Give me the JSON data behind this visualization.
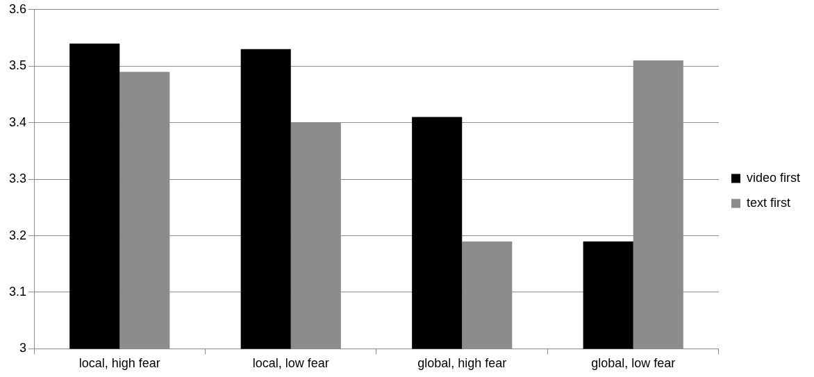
{
  "chart_data": {
    "type": "bar",
    "categories": [
      "local, high fear",
      "local, low fear",
      "global, high fear",
      "global, low fear"
    ],
    "series": [
      {
        "name": "video first",
        "color": "#000000",
        "values": [
          3.54,
          3.53,
          3.41,
          3.19
        ]
      },
      {
        "name": "text first",
        "color": "#8c8c8c",
        "values": [
          3.49,
          3.4,
          3.19,
          3.51
        ]
      }
    ],
    "ylim": [
      3,
      3.6
    ],
    "yticks": [
      3,
      3.1,
      3.2,
      3.3,
      3.4,
      3.5,
      3.6
    ],
    "grid": "y",
    "legend": "right"
  }
}
